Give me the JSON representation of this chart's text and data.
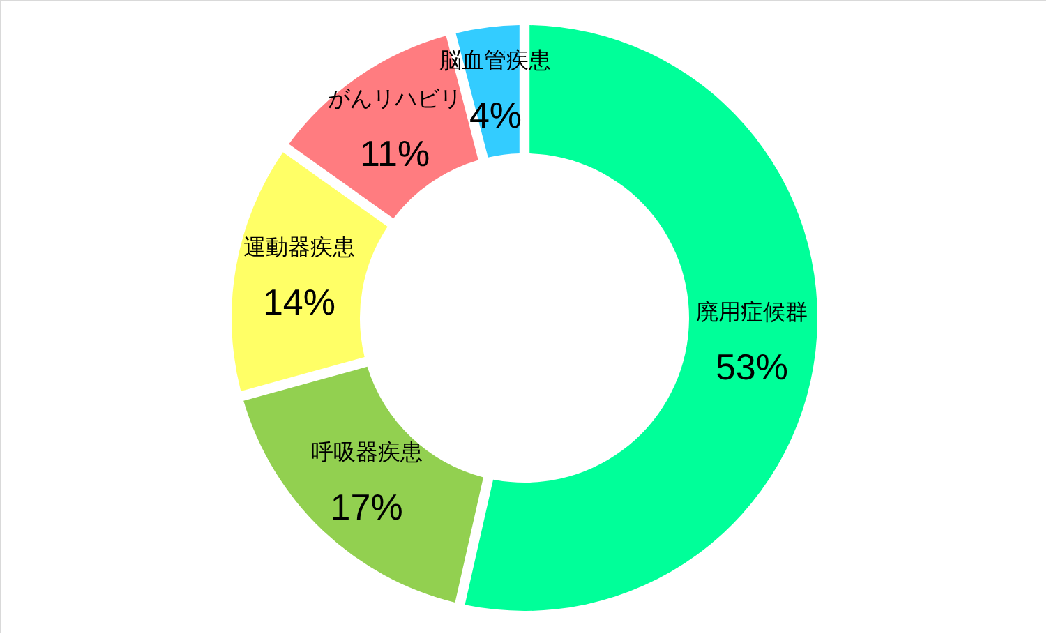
{
  "chart_data": {
    "type": "donut",
    "categories": [
      "廃用症候群",
      "呼吸器疾患",
      "運動器疾患",
      "がんリハビリ",
      "脳血管疾患"
    ],
    "values": [
      53,
      17,
      14,
      11,
      4
    ],
    "value_labels": [
      "53%",
      "17%",
      "14%",
      "11%",
      "4%"
    ],
    "colors": [
      "#00ff99",
      "#92d050",
      "#ffff66",
      "#ff7c80",
      "#33ccff"
    ]
  }
}
